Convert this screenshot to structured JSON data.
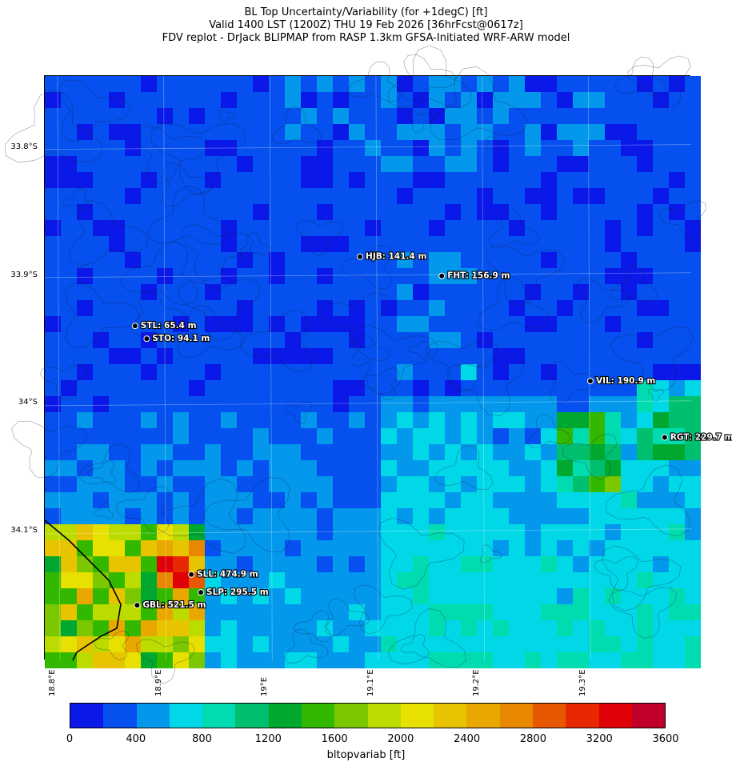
{
  "title_lines": [
    "BL Top Uncertainty/Variability (for +1degC) [ft]",
    "Valid 1400 LST (1200Z) THU 19 Feb 2026 [36hrFcst@0617z]",
    "FDV replot - DrJack BLIPMAP from RASP 1.3km GFSA-Initiated WRF-ARW model"
  ],
  "lat_labels": [
    "33.8°S",
    "33.9°S",
    "34°S",
    "34.1°S"
  ],
  "lon_labels": [
    "18.8°E",
    "18.9°E",
    "19°E",
    "19.1°E",
    "19.2°E",
    "19.3°E"
  ],
  "stations": [
    {
      "code": "HJB",
      "label": "HJB: 141.4 m",
      "lon": 19.085,
      "lat": -33.885
    },
    {
      "code": "FHT",
      "label": "FHT: 156.9 m",
      "lon": 19.162,
      "lat": -33.9
    },
    {
      "code": "STL",
      "label": "STL: 65.4 m",
      "lon": 18.873,
      "lat": -33.939
    },
    {
      "code": "STO",
      "label": "STO: 94.1 m",
      "lon": 18.884,
      "lat": -33.949
    },
    {
      "code": "VIL",
      "label": "VIL: 190.9 m",
      "lon": 19.302,
      "lat": -33.982
    },
    {
      "code": "RGT",
      "label": "RGT: 229.7 m",
      "lon": 19.372,
      "lat": -34.026
    },
    {
      "code": "SLL",
      "label": "SLL: 474.9 m",
      "lon": 18.926,
      "lat": -34.133
    },
    {
      "code": "SLP",
      "label": "SLP: 295.5 m",
      "lon": 18.935,
      "lat": -34.147
    },
    {
      "code": "GBL",
      "label": "GBL: 521.5 m",
      "lon": 18.875,
      "lat": -34.157
    }
  ],
  "colorbar": {
    "label": "bltopvariab [ft]",
    "ticks": [
      "0",
      "400",
      "800",
      "1200",
      "1600",
      "2000",
      "2400",
      "2800",
      "3200",
      "3600"
    ],
    "colors": [
      "#0a18e8",
      "#0550ee",
      "#0398ec",
      "#00d8e8",
      "#00dcb0",
      "#00c070",
      "#00a830",
      "#33b800",
      "#7cc800",
      "#bcdc00",
      "#e8e000",
      "#e8c400",
      "#e8a800",
      "#e88800",
      "#e85800",
      "#e82800",
      "#e00008",
      "#c0002a"
    ]
  },
  "extent": {
    "lon_min": 18.788,
    "lon_max": 19.397,
    "lat_max": -33.744,
    "lat_min": -34.2
  }
}
